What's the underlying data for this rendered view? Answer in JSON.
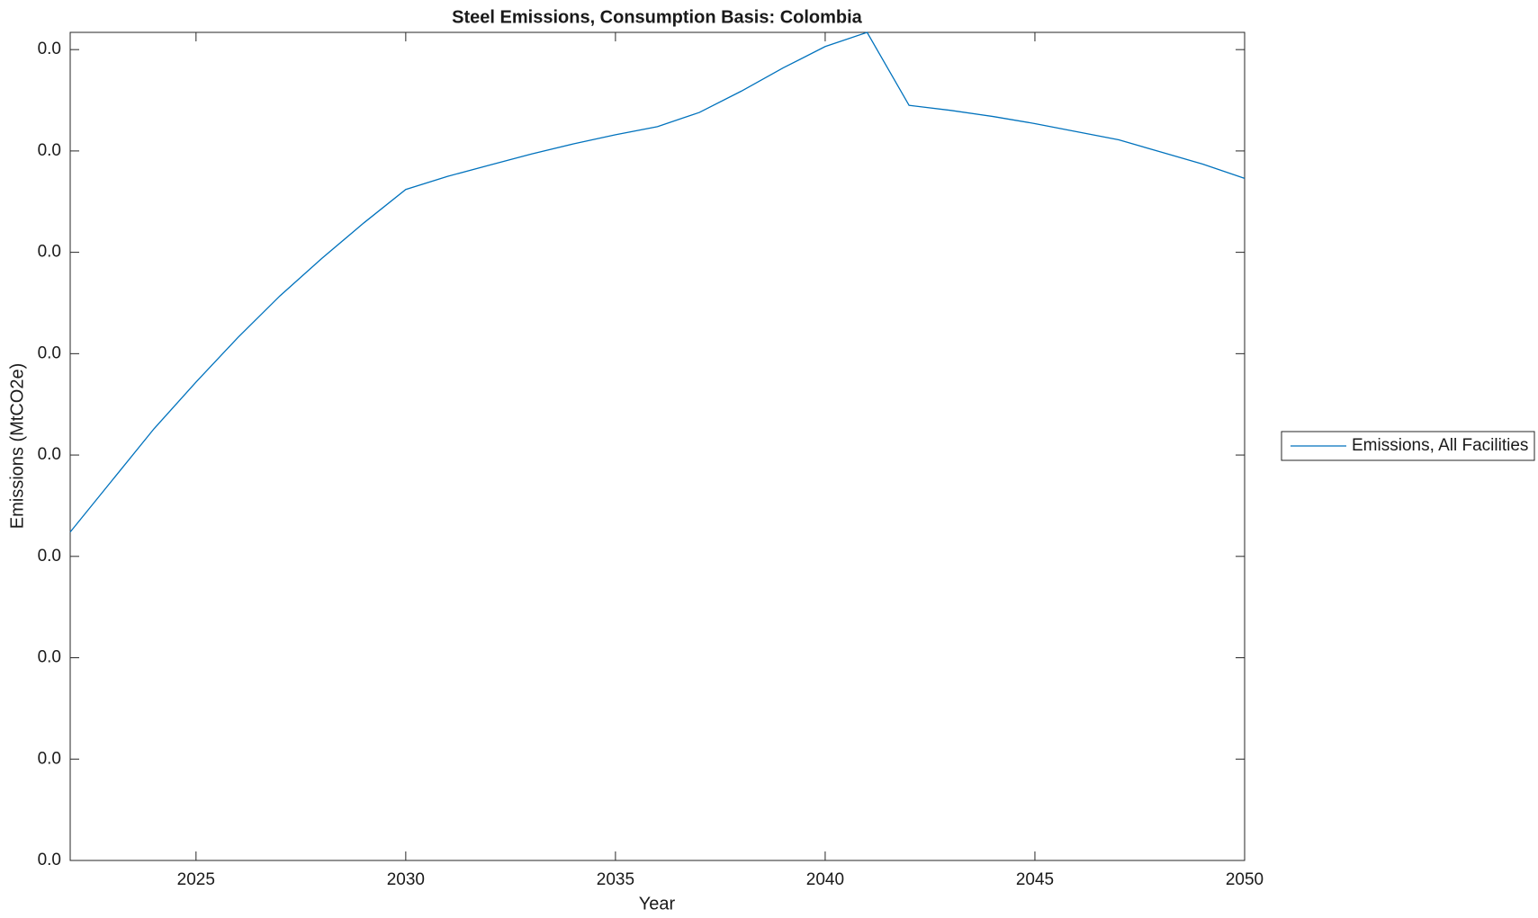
{
  "chart_data": {
    "type": "line",
    "title": "Steel Emissions, Consumption Basis: Colombia",
    "x_label": "Year",
    "y_label": "Emissions (MtCO2e)",
    "x": [
      2022,
      2023,
      2024,
      2025,
      2026,
      2027,
      2028,
      2029,
      2030,
      2031,
      2032,
      2033,
      2034,
      2035,
      2036,
      2037,
      2038,
      2039,
      2040,
      2041,
      2042,
      2043,
      2044,
      2045,
      2046,
      2047,
      2048,
      2049,
      2050
    ],
    "series": [
      {
        "name": "Emissions, All Facilities",
        "color": "#0072bd",
        "values": [
          0.00324,
          0.00375,
          0.00426,
          0.00472,
          0.00516,
          0.00557,
          0.00594,
          0.00629,
          0.00662,
          0.00675,
          0.00686,
          0.00697,
          0.00707,
          0.00716,
          0.00724,
          0.00738,
          0.00759,
          0.00782,
          0.00803,
          0.00817,
          0.00745,
          0.0074,
          0.00734,
          0.00727,
          0.00719,
          0.00711,
          0.00699,
          0.00687,
          0.00673
        ]
      }
    ],
    "xlim": [
      2022,
      2050
    ],
    "xticks": [
      2025,
      2030,
      2035,
      2040,
      2045,
      2050
    ],
    "ylim": [
      0,
      0.00817
    ],
    "yticks": [
      {
        "value": 0,
        "label": "0.0"
      },
      {
        "value": 0.001,
        "label": "0.0"
      },
      {
        "value": 0.002,
        "label": "0.0"
      },
      {
        "value": 0.003,
        "label": "0.0"
      },
      {
        "value": 0.004,
        "label": "0.0"
      },
      {
        "value": 0.005,
        "label": "0.0"
      },
      {
        "value": 0.006,
        "label": "0.0"
      },
      {
        "value": 0.007,
        "label": "0.0"
      },
      {
        "value": 0.008,
        "label": "0.0"
      }
    ],
    "grid": false,
    "legend": "outside-right"
  }
}
